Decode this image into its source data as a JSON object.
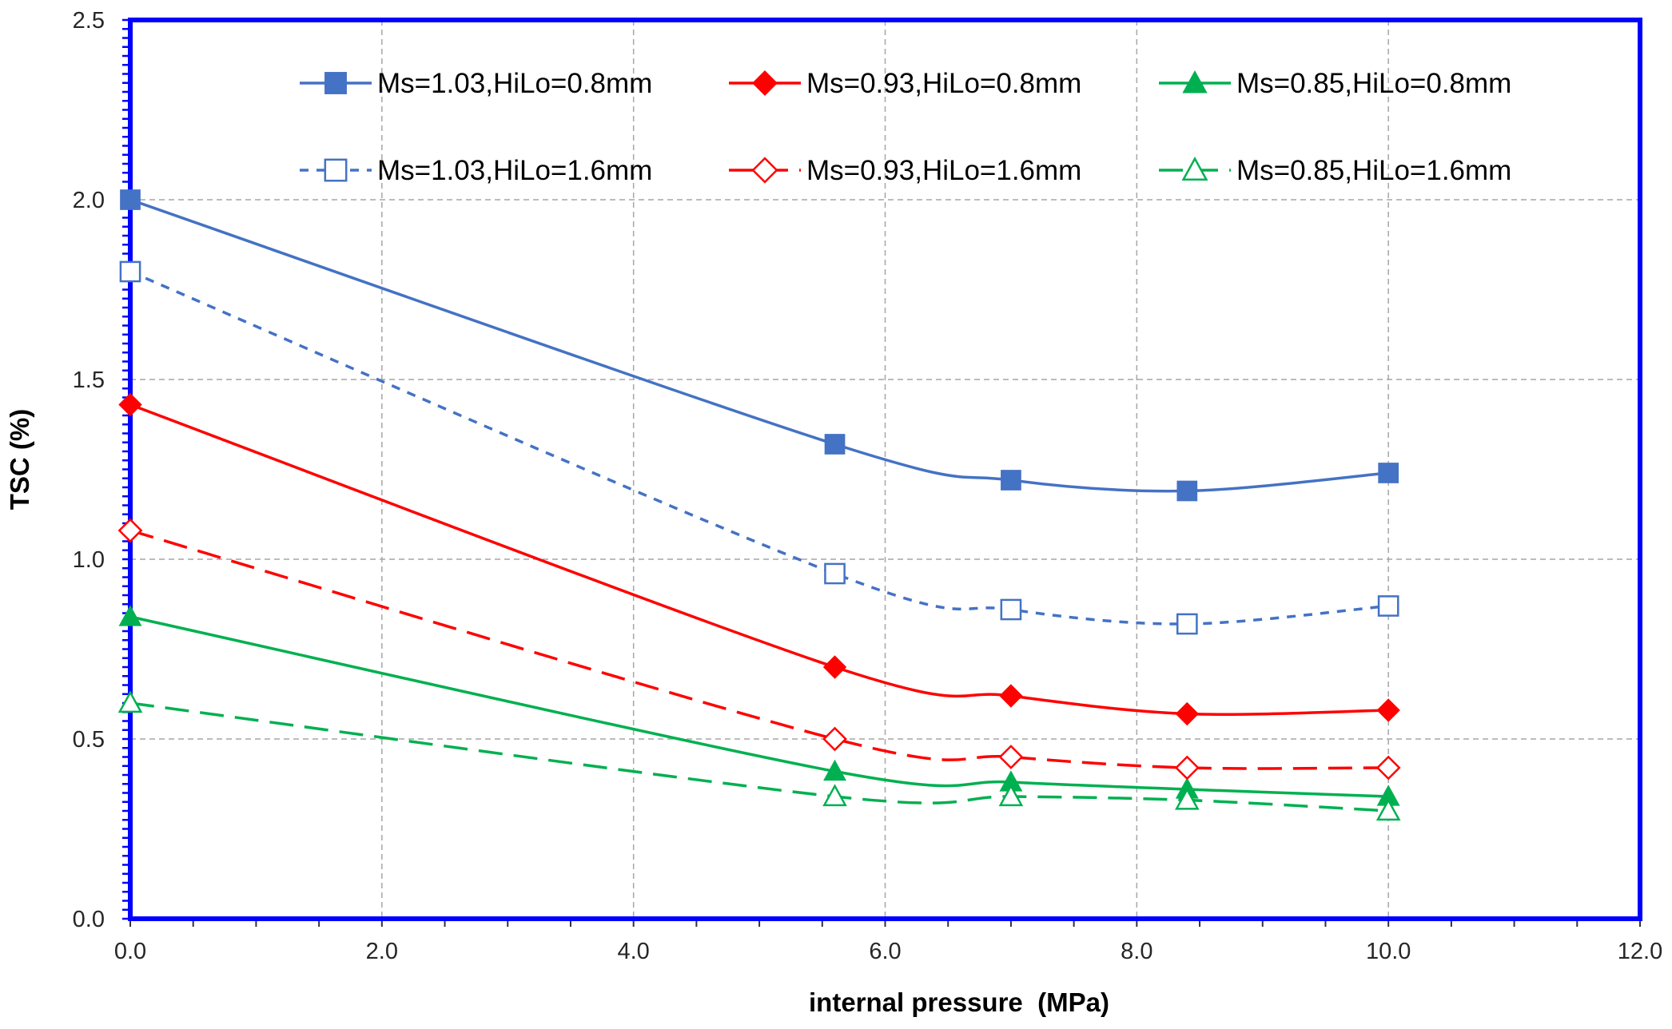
{
  "chart_data": {
    "type": "line",
    "title": "",
    "xlabel": "internal pressure  (MPa)",
    "ylabel": "TSC (%)",
    "xlim": [
      0,
      12
    ],
    "ylim": [
      0,
      2.5
    ],
    "xticks": [
      0,
      2,
      4,
      6,
      8,
      10,
      12
    ],
    "yticks": [
      0,
      0.5,
      1,
      1.5,
      2,
      2.5
    ],
    "xtick_labels": [
      "0.0",
      "2.0",
      "4.0",
      "6.0",
      "8.0",
      "10.0",
      "12.0"
    ],
    "ytick_labels": [
      "0.0",
      "0.5",
      "1.0",
      "1.5",
      "2.0",
      "2.5"
    ],
    "grid": true,
    "legend_position": "top",
    "series": [
      {
        "name": "Ms=1.03,HiLo=0.8mm",
        "color": "#4472C4",
        "marker": "square",
        "filled": true,
        "dash": "solid",
        "x": [
          0,
          5.6,
          7,
          8.4,
          10
        ],
        "y": [
          2.0,
          1.32,
          1.22,
          1.19,
          1.24
        ]
      },
      {
        "name": "Ms=0.93,HiLo=0.8mm",
        "color": "#FF0000",
        "marker": "diamond",
        "filled": true,
        "dash": "solid",
        "x": [
          0,
          5.6,
          7,
          8.4,
          10
        ],
        "y": [
          1.43,
          0.7,
          0.62,
          0.57,
          0.58
        ]
      },
      {
        "name": "Ms=0.85,HiLo=0.8mm",
        "color": "#00B050",
        "marker": "triangle",
        "filled": true,
        "dash": "solid",
        "x": [
          0,
          5.6,
          7,
          8.4,
          10
        ],
        "y": [
          0.84,
          0.41,
          0.38,
          0.36,
          0.34
        ]
      },
      {
        "name": "Ms=1.03,HiLo=1.6mm",
        "color": "#4472C4",
        "marker": "square",
        "filled": false,
        "dash": "short",
        "x": [
          0,
          5.6,
          7,
          8.4,
          10
        ],
        "y": [
          1.8,
          0.96,
          0.86,
          0.82,
          0.87
        ]
      },
      {
        "name": "Ms=0.93,HiLo=1.6mm",
        "color": "#FF0000",
        "marker": "diamond",
        "filled": false,
        "dash": "long",
        "x": [
          0,
          5.6,
          7,
          8.4,
          10
        ],
        "y": [
          1.08,
          0.5,
          0.45,
          0.42,
          0.42
        ]
      },
      {
        "name": "Ms=0.85,HiLo=1.6mm",
        "color": "#00B050",
        "marker": "triangle",
        "filled": false,
        "dash": "long",
        "x": [
          0,
          5.6,
          7,
          8.4,
          10
        ],
        "y": [
          0.6,
          0.34,
          0.34,
          0.33,
          0.3
        ]
      }
    ]
  }
}
